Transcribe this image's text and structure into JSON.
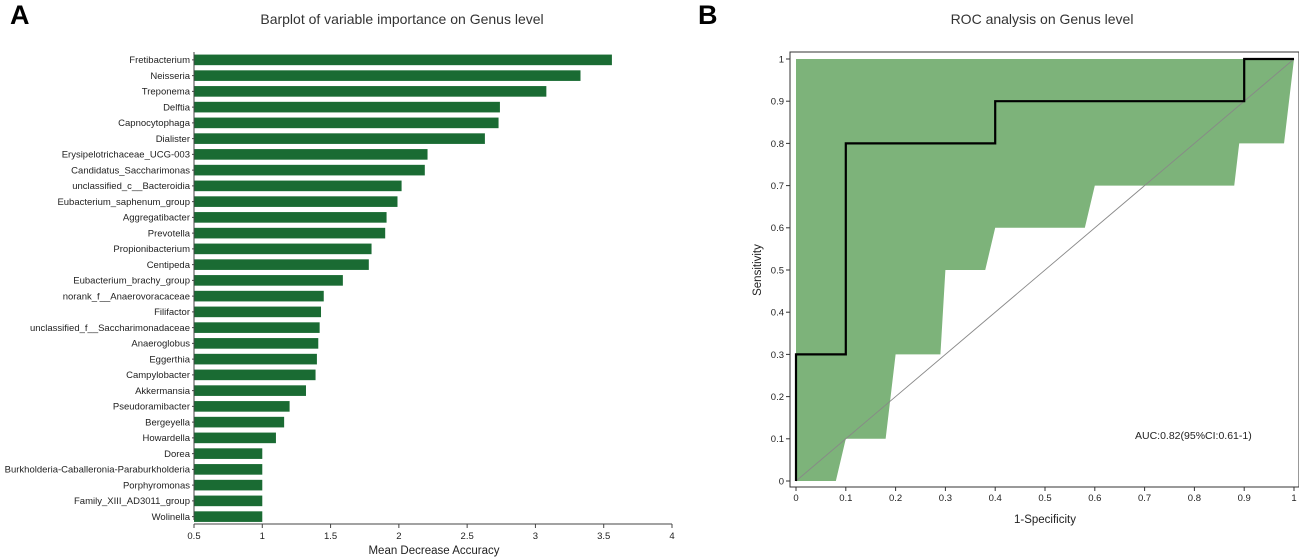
{
  "panel_a": {
    "letter": "A",
    "chart_data": {
      "type": "bar",
      "orientation": "horizontal",
      "title": "Barplot of variable importance on Genus level",
      "xlabel": "Mean Decrease Accuracy",
      "ylabel": "",
      "xlim": [
        0.5,
        4
      ],
      "xticks": [
        "0.5",
        "1",
        "1.5",
        "2",
        "2.5",
        "3",
        "3.5",
        "4"
      ],
      "bar_color": "#1a6b33",
      "categories": [
        "Fretibacterium",
        "Neisseria",
        "Treponema",
        "Delftia",
        "Capnocytophaga",
        "Dialister",
        "Erysipelotrichaceae_UCG-003",
        "Candidatus_Saccharimonas",
        "unclassified_c__Bacteroidia",
        "Eubacterium_saphenum_group",
        "Aggregatibacter",
        "Prevotella",
        "Propionibacterium",
        "Centipeda",
        "Eubacterium_brachy_group",
        "norank_f__Anaerovoracaceae",
        "Filifactor",
        "unclassified_f__Saccharimonadaceae",
        "Anaeroglobus",
        "Eggerthia",
        "Campylobacter",
        "Akkermansia",
        "Pseudoramibacter",
        "Bergeyella",
        "Howardella",
        "Dorea",
        "Burkholderia-Caballeronia-Paraburkholderia",
        "Porphyromonas",
        "Family_XIII_AD3011_group",
        "Wolinella"
      ],
      "values": [
        3.56,
        3.33,
        3.08,
        2.74,
        2.73,
        2.63,
        2.21,
        2.19,
        2.02,
        1.99,
        1.91,
        1.9,
        1.8,
        1.78,
        1.59,
        1.45,
        1.43,
        1.42,
        1.41,
        1.4,
        1.39,
        1.32,
        1.2,
        1.16,
        1.1,
        1.0,
        1.0,
        1.0,
        1.0,
        1.0
      ]
    }
  },
  "panel_b": {
    "letter": "B",
    "chart_data": {
      "type": "line",
      "title": "ROC analysis on Genus level",
      "xlabel": "1-Specificity",
      "ylabel": "Sensitivity",
      "xlim": [
        0,
        1
      ],
      "ylim": [
        0,
        1
      ],
      "xticks": [
        "0",
        "0.1",
        "0.2",
        "0.3",
        "0.4",
        "0.5",
        "0.6",
        "0.7",
        "0.8",
        "0.9",
        "1"
      ],
      "yticks": [
        "0",
        "0.1",
        "0.2",
        "0.3",
        "0.4",
        "0.5",
        "0.6",
        "0.7",
        "0.8",
        "0.9",
        "1"
      ],
      "ci_color": "#7db37a",
      "roc_curve": {
        "x": [
          0,
          0,
          0.1,
          0.1,
          0.4,
          0.4,
          0.9,
          0.9,
          1
        ],
        "y": [
          0,
          0.3,
          0.3,
          0.8,
          0.8,
          0.9,
          0.9,
          1,
          1
        ]
      },
      "ci_band": {
        "upper": {
          "x": [
            0,
            1
          ],
          "y": [
            1,
            1
          ]
        },
        "lower": {
          "x": [
            1,
            0.98,
            0.98,
            0.89,
            0.88,
            0.88,
            0.6,
            0.6,
            0.58,
            0.58,
            0.4,
            0.4,
            0.38,
            0.38,
            0.3,
            0.3,
            0.29,
            0.28,
            0.28,
            0.2,
            0.2,
            0.18,
            0.18,
            0.1,
            0.1,
            0.08,
            0.08,
            0
          ],
          "y": [
            1,
            0.8,
            0.8,
            0.8,
            0.7,
            0.7,
            0.7,
            0.7,
            0.6,
            0.6,
            0.6,
            0.6,
            0.5,
            0.5,
            0.5,
            0.5,
            0.3,
            0.3,
            0.3,
            0.3,
            0.3,
            0.1,
            0.1,
            0.1,
            0.1,
            0.0,
            0.0,
            0.0
          ]
        }
      },
      "reference_line": {
        "x": [
          0,
          1
        ],
        "y": [
          0,
          1
        ]
      },
      "annotation": "AUC:0.82(95%CI:0.61-1)"
    }
  }
}
